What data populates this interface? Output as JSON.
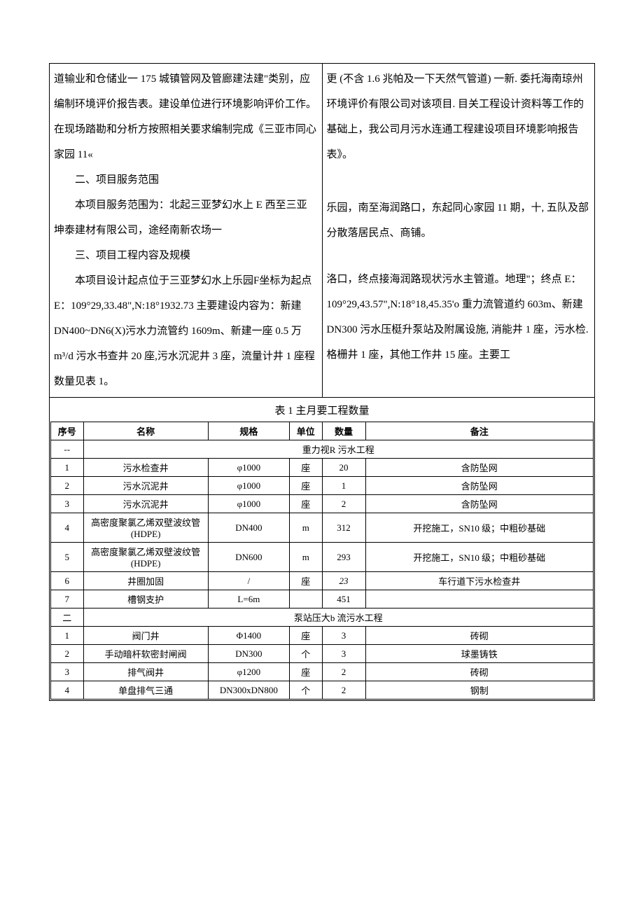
{
  "left_col": {
    "p1": "道输业和仓储业一 175 城镇管网及管廊建法建\"类别，应编制环境评价报告表。建设单位进行环境影响评价工作。在现场踏勘和分析方按照相关要求编制完成《三亚市同心家园 11«",
    "h2": "二、项目服务范围",
    "p2": "本项目服务范围为：北起三亚梦幻水上 E 西至三亚坤泰建材有限公司，途经南新农场一",
    "h3": "三、项目工程内容及规模",
    "p3": "本项目设计起点位于三亚梦幻水上乐园F坐标为起点 E：109°29,33.48\",N:18°1932.73 主要建设内容为：新建 DN400~DN6(X)污水力流管约 1609m、新建一座 0.5 万 m³/d 污水书查井 20 座,污水沉泥井 3 座，流量计井 1 座程数量见表 1。"
  },
  "right_col": {
    "p1": "更 (不含 1.6 兆帕及一下天然气管道) 一新. 委托海南琼州环境评价有限公司对该项目. 目关工程设计资料等工作的基础上，我公司月污水连通工程建设项目环境影响报告表》。",
    "p2": "乐园，南至海润路口，东起同心家园 11 期，十, 五队及部分散落居民点、商铺。",
    "p3": "洛口，终点接海润路现状污水主管道。地理\"；终点 E：109°29,43.57\",N:18°18,45.35'o 重力流管道约 603m、新建 DN300 污水压梃升泵站及附属设施, 消能井 1 座，污水检. 格栅井 1 座，其他工作井 15 座。主要工"
  },
  "caption": "表 1 主月要工程数量",
  "headers": [
    "序号",
    "名称",
    "规格",
    "单位",
    "数量",
    "备注"
  ],
  "section1": "重力视R 污水工程",
  "section1_no": "--",
  "rows1": [
    {
      "no": "1",
      "name": "污水检查井",
      "spec": "φ1000",
      "unit": "座",
      "qty": "20",
      "note": "含防坠网"
    },
    {
      "no": "2",
      "name": "污水沉泥井",
      "spec": "φ1000",
      "unit": "座",
      "qty": "1",
      "note": "含防坠网"
    },
    {
      "no": "3",
      "name": "污水沉泥井",
      "spec": "φ1000",
      "unit": "座",
      "qty": "2",
      "note": "含防坠网"
    },
    {
      "no": "4",
      "name": "高密度聚氯乙烯双壁波纹管(HDPE)",
      "spec": "DN400",
      "unit": "m",
      "qty": "312",
      "note": "开挖施工，SN10 级；中粗砂基础"
    },
    {
      "no": "5",
      "name": "高密度聚氯乙烯双壁波纹管(HDPE)",
      "spec": "DN600",
      "unit": "m",
      "qty": "293",
      "note": "开挖施工，SN10 级；中粗砂基础"
    },
    {
      "no": "6",
      "name": "井圈加固",
      "spec": "/",
      "unit": "座",
      "qty": "23",
      "note": "车行道下污水检查井",
      "qty_italic": true
    },
    {
      "no": "7",
      "name": "槽钢支护",
      "spec": "L=6m",
      "unit": "",
      "qty": "451",
      "note": ""
    }
  ],
  "section2": "泵站压大b 流污水工程",
  "section2_no": "二",
  "rows2": [
    {
      "no": "1",
      "name": "阀门井",
      "spec": "Φ1400",
      "unit": "座",
      "qty": "3",
      "note": "砖砌"
    },
    {
      "no": "2",
      "name": "手动暗杆软密封闸阀",
      "spec": "DN300",
      "unit": "个",
      "qty": "3",
      "note": "球墨铸铁"
    },
    {
      "no": "3",
      "name": "排气阀井",
      "spec": "φ1200",
      "unit": "座",
      "qty": "2",
      "note": "砖砌"
    },
    {
      "no": "4",
      "name": "单盘排气三通",
      "spec": "DN300xDN800",
      "unit": "个",
      "qty": "2",
      "note": "钢制"
    }
  ],
  "colwidths": {
    "no": "6%",
    "name": "23%",
    "spec": "15%",
    "unit": "6%",
    "qty": "8%",
    "note": "42%"
  }
}
